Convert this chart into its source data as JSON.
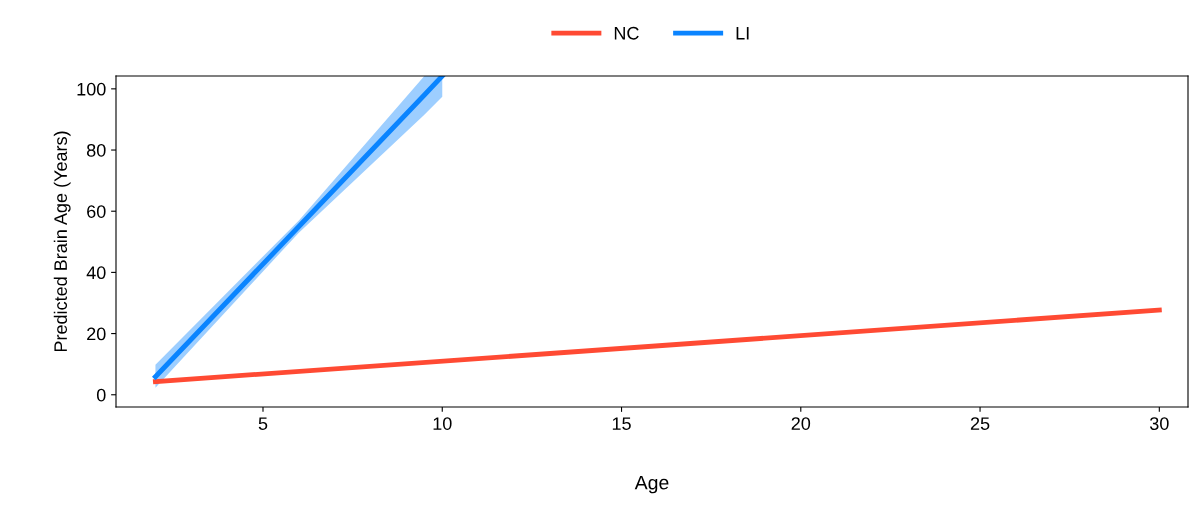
{
  "chart_data": {
    "type": "line",
    "xlabel": "Age",
    "ylabel": "Predicted Brain Age (Years)",
    "xlim": [
      0.9,
      30.8
    ],
    "ylim": [
      -4,
      104.2
    ],
    "xticks": [
      5,
      10,
      15,
      20,
      25,
      30
    ],
    "yticks": [
      0,
      20,
      40,
      60,
      80,
      100
    ],
    "grid": false,
    "legend": "top",
    "line_style": "solid",
    "series": [
      {
        "name": "NC",
        "color": "#ff4a33",
        "x": [
          2,
          30
        ],
        "values": [
          4.3,
          27.7
        ]
      },
      {
        "name": "LI",
        "color": "#0a84ff",
        "x": [
          2,
          6,
          9.5,
          10
        ],
        "values": [
          5.9,
          55,
          98,
          104.2
        ],
        "lower": [
          2.3,
          53,
          91.5,
          97.4
        ],
        "upper": [
          9.8,
          57,
          104.2,
          104.2
        ]
      }
    ]
  }
}
